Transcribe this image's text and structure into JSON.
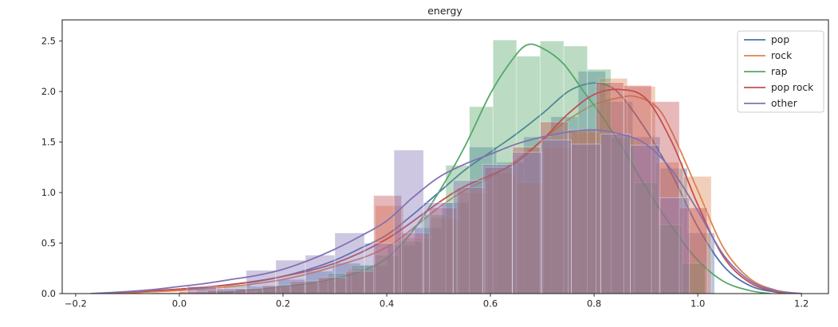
{
  "chart_data": {
    "type": "histogram+kde",
    "title": "energy",
    "xlabel": "",
    "ylabel": "",
    "grid": false,
    "background": "#ffffff",
    "xlim": [
      -0.226,
      1.252
    ],
    "ylim": [
      0,
      2.709
    ],
    "xticks": {
      "values": [
        -0.2,
        0.0,
        0.2,
        0.4,
        0.6,
        0.8,
        1.0,
        1.2
      ],
      "labels": [
        "−0.2",
        "0.0",
        "0.2",
        "0.4",
        "0.6",
        "0.8",
        "1.0",
        "1.2"
      ]
    },
    "yticks": {
      "values": [
        0.0,
        0.5,
        1.0,
        1.5,
        2.0,
        2.5
      ],
      "labels": [
        "0.0",
        "0.5",
        "1.0",
        "1.5",
        "2.0",
        "2.5"
      ]
    },
    "legend": {
      "position": "upper right",
      "entries": [
        "pop",
        "rock",
        "rap",
        "pop rock",
        "other"
      ]
    },
    "hist_alpha": 0.4,
    "series": [
      {
        "name": "pop",
        "color": "#4C72B0",
        "hist": {
          "start": 0.033,
          "bin_width": 0.0526,
          "heights": [
            0.05,
            0.09,
            0.07,
            0.14,
            0.22,
            0.3,
            0.28,
            0.48,
            0.65,
            0.9,
            1.45,
            1.3,
            1.55,
            1.75,
            2.2,
            1.9,
            1.55,
            1.24,
            0.6
          ]
        },
        "kde": [
          [
            -0.17,
            0
          ],
          [
            -0.12,
            0.005
          ],
          [
            -0.05,
            0.02
          ],
          [
            0.0,
            0.04
          ],
          [
            0.05,
            0.06
          ],
          [
            0.1,
            0.09
          ],
          [
            0.15,
            0.12
          ],
          [
            0.2,
            0.17
          ],
          [
            0.25,
            0.24
          ],
          [
            0.3,
            0.33
          ],
          [
            0.35,
            0.45
          ],
          [
            0.4,
            0.58
          ],
          [
            0.45,
            0.78
          ],
          [
            0.5,
            1.0
          ],
          [
            0.55,
            1.22
          ],
          [
            0.6,
            1.4
          ],
          [
            0.65,
            1.58
          ],
          [
            0.7,
            1.78
          ],
          [
            0.75,
            2.0
          ],
          [
            0.79,
            2.08
          ],
          [
            0.82,
            2.07
          ],
          [
            0.85,
            1.97
          ],
          [
            0.9,
            1.62
          ],
          [
            0.95,
            1.18
          ],
          [
            1.0,
            0.66
          ],
          [
            1.05,
            0.27
          ],
          [
            1.1,
            0.08
          ],
          [
            1.15,
            0.015
          ],
          [
            1.19,
            0
          ]
        ]
      },
      {
        "name": "rock",
        "color": "#DD8452",
        "hist": {
          "start": 0.0,
          "bin_width": 0.054,
          "heights": [
            0.02,
            0.04,
            0.03,
            0.06,
            0.1,
            0.15,
            0.25,
            0.87,
            0.55,
            0.75,
            1.0,
            1.2,
            1.1,
            1.45,
            1.6,
            2.13,
            2.05,
            1.3,
            1.16
          ]
        },
        "kde": [
          [
            -0.17,
            0
          ],
          [
            -0.1,
            0.01
          ],
          [
            0.0,
            0.03
          ],
          [
            0.1,
            0.07
          ],
          [
            0.2,
            0.14
          ],
          [
            0.3,
            0.27
          ],
          [
            0.4,
            0.46
          ],
          [
            0.5,
            0.85
          ],
          [
            0.55,
            1.02
          ],
          [
            0.6,
            1.15
          ],
          [
            0.65,
            1.32
          ],
          [
            0.7,
            1.52
          ],
          [
            0.75,
            1.72
          ],
          [
            0.8,
            1.87
          ],
          [
            0.85,
            1.94
          ],
          [
            0.88,
            1.95
          ],
          [
            0.92,
            1.85
          ],
          [
            0.95,
            1.6
          ],
          [
            1.0,
            1.02
          ],
          [
            1.05,
            0.45
          ],
          [
            1.1,
            0.15
          ],
          [
            1.15,
            0.035
          ],
          [
            1.2,
            0
          ]
        ]
      },
      {
        "name": "rap",
        "color": "#55A868",
        "hist": {
          "start": 0.15,
          "bin_width": 0.0455,
          "heights": [
            0.06,
            0.09,
            0.13,
            0.2,
            0.28,
            0.38,
            0.52,
            0.78,
            1.27,
            1.85,
            2.51,
            2.35,
            2.5,
            2.45,
            2.22,
            1.55,
            1.1,
            0.68,
            0.3
          ]
        },
        "kde": [
          [
            0.05,
            0
          ],
          [
            0.1,
            0.015
          ],
          [
            0.15,
            0.04
          ],
          [
            0.2,
            0.07
          ],
          [
            0.25,
            0.1
          ],
          [
            0.3,
            0.15
          ],
          [
            0.35,
            0.22
          ],
          [
            0.4,
            0.35
          ],
          [
            0.45,
            0.62
          ],
          [
            0.5,
            1.0
          ],
          [
            0.55,
            1.45
          ],
          [
            0.6,
            1.98
          ],
          [
            0.64,
            2.3
          ],
          [
            0.67,
            2.46
          ],
          [
            0.7,
            2.43
          ],
          [
            0.74,
            2.28
          ],
          [
            0.78,
            2.0
          ],
          [
            0.82,
            1.72
          ],
          [
            0.86,
            1.4
          ],
          [
            0.9,
            1.05
          ],
          [
            0.95,
            0.66
          ],
          [
            1.0,
            0.33
          ],
          [
            1.05,
            0.12
          ],
          [
            1.1,
            0.03
          ],
          [
            1.14,
            0
          ]
        ]
      },
      {
        "name": "pop rock",
        "color": "#C44E52",
        "hist": {
          "start": -0.054,
          "bin_width": 0.0536,
          "heights": [
            0.01,
            0.02,
            0.03,
            0.05,
            0.08,
            0.12,
            0.16,
            0.22,
            0.97,
            0.6,
            0.85,
            1.05,
            1.25,
            1.45,
            1.7,
            1.62,
            2.09,
            2.06,
            1.9,
            0.85
          ]
        },
        "kde": [
          [
            -0.17,
            0
          ],
          [
            -0.1,
            0.015
          ],
          [
            0.0,
            0.045
          ],
          [
            0.1,
            0.09
          ],
          [
            0.2,
            0.17
          ],
          [
            0.3,
            0.3
          ],
          [
            0.4,
            0.54
          ],
          [
            0.5,
            0.9
          ],
          [
            0.55,
            1.06
          ],
          [
            0.6,
            1.17
          ],
          [
            0.65,
            1.3
          ],
          [
            0.7,
            1.52
          ],
          [
            0.75,
            1.78
          ],
          [
            0.8,
            1.97
          ],
          [
            0.85,
            2.02
          ],
          [
            0.9,
            1.93
          ],
          [
            0.95,
            1.5
          ],
          [
            1.0,
            0.88
          ],
          [
            1.05,
            0.36
          ],
          [
            1.1,
            0.11
          ],
          [
            1.15,
            0.02
          ],
          [
            1.19,
            0
          ]
        ]
      },
      {
        "name": "other",
        "color": "#8172B3",
        "hist": {
          "start": 0.015,
          "bin_width": 0.057,
          "heights": [
            0.07,
            0.05,
            0.23,
            0.33,
            0.38,
            0.6,
            0.5,
            1.42,
            0.9,
            1.12,
            1.28,
            1.4,
            1.52,
            1.48,
            1.58,
            1.47,
            0.95
          ]
        },
        "kde": [
          [
            -0.17,
            0
          ],
          [
            -0.1,
            0.02
          ],
          [
            -0.05,
            0.04
          ],
          [
            0.0,
            0.07
          ],
          [
            0.05,
            0.1
          ],
          [
            0.1,
            0.14
          ],
          [
            0.15,
            0.18
          ],
          [
            0.2,
            0.24
          ],
          [
            0.25,
            0.33
          ],
          [
            0.3,
            0.44
          ],
          [
            0.35,
            0.57
          ],
          [
            0.4,
            0.72
          ],
          [
            0.45,
            0.95
          ],
          [
            0.5,
            1.15
          ],
          [
            0.55,
            1.28
          ],
          [
            0.6,
            1.38
          ],
          [
            0.65,
            1.48
          ],
          [
            0.7,
            1.55
          ],
          [
            0.75,
            1.6
          ],
          [
            0.8,
            1.62
          ],
          [
            0.85,
            1.58
          ],
          [
            0.9,
            1.48
          ],
          [
            0.95,
            1.22
          ],
          [
            1.0,
            0.82
          ],
          [
            1.05,
            0.38
          ],
          [
            1.1,
            0.13
          ],
          [
            1.15,
            0.03
          ],
          [
            1.2,
            0
          ]
        ]
      }
    ],
    "styles": {
      "text_color": "#262626",
      "spine_color": "#2e2e2e",
      "legend_border": "#cccccc",
      "bar_edge": "rgba(255,255,255,0.45)"
    }
  }
}
